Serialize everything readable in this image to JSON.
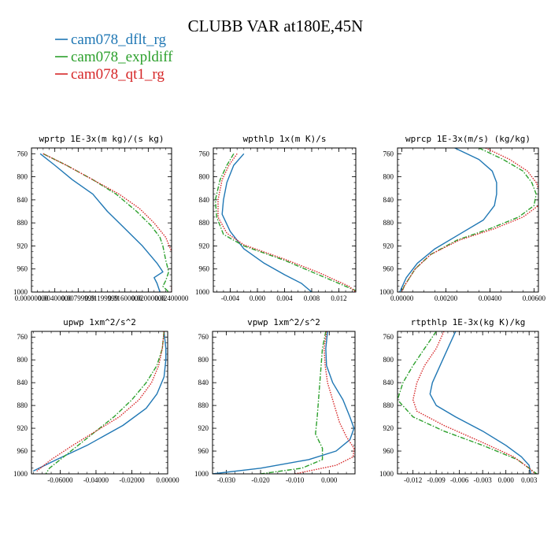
{
  "title": "CLUBB VAR at180E,45N",
  "legend": [
    {
      "name": "cam078_dflt_rg",
      "color": "#1f77b4",
      "dash": "solid"
    },
    {
      "name": "cam078_expldiff",
      "color": "#2ca02c",
      "dash": "dashdot"
    },
    {
      "name": "cam078_qt1_rg",
      "color": "#d62728",
      "dash": "dotted"
    }
  ],
  "chart_data": [
    {
      "type": "line",
      "title": "wprtp  1E-3x(m kg)/(s kg)",
      "xlim": [
        0,
        0.024
      ],
      "ylim": [
        1000,
        750
      ],
      "xticks": [
        0,
        0.004,
        0.008,
        0.012,
        0.016,
        0.02,
        0.024
      ],
      "xtick_labels": [
        "0.00000000",
        "0.00400000",
        "0.00799999",
        "0.01199999",
        "0.01600000",
        "0.02000000",
        "0.02400000"
      ],
      "yticks": [
        760,
        800,
        840,
        880,
        920,
        960,
        1000
      ],
      "series": [
        {
          "name": "cam078_dflt_rg",
          "points": [
            [
              0.0015,
              760
            ],
            [
              0.004,
              780
            ],
            [
              0.007,
              805
            ],
            [
              0.0105,
              830
            ],
            [
              0.013,
              860
            ],
            [
              0.0155,
              885
            ],
            [
              0.019,
              920
            ],
            [
              0.0215,
              950
            ],
            [
              0.0225,
              965
            ],
            [
              0.021,
              975
            ],
            [
              0.0215,
              985
            ],
            [
              0.022,
              1000
            ]
          ]
        },
        {
          "name": "cam078_expldiff",
          "points": [
            [
              0.002,
              760
            ],
            [
              0.006,
              780
            ],
            [
              0.0105,
              805
            ],
            [
              0.0145,
              830
            ],
            [
              0.018,
              860
            ],
            [
              0.0205,
              885
            ],
            [
              0.022,
              905
            ],
            [
              0.0225,
              920
            ],
            [
              0.023,
              945
            ],
            [
              0.0235,
              965
            ],
            [
              0.023,
              980
            ],
            [
              0.0225,
              990
            ],
            [
              0.0235,
              1000
            ]
          ]
        },
        {
          "name": "cam078_qt1_rg",
          "points": [
            [
              0.002,
              760
            ],
            [
              0.006,
              780
            ],
            [
              0.0105,
              805
            ],
            [
              0.015,
              830
            ],
            [
              0.0185,
              855
            ],
            [
              0.021,
              880
            ],
            [
              0.023,
              905
            ],
            [
              0.024,
              930
            ],
            [
              0.0245,
              955
            ],
            [
              0.0245,
              975
            ],
            [
              0.024,
              990
            ],
            [
              0.024,
              1000
            ]
          ]
        }
      ]
    },
    {
      "type": "line",
      "title": "wpthlp  1x(m K)/s",
      "xlim": [
        -0.0065,
        0.0145
      ],
      "ylim": [
        1000,
        750
      ],
      "xticks": [
        -0.004,
        0,
        0.004,
        0.008,
        0.012
      ],
      "xtick_labels": [
        "-0.004",
        "0.000",
        "0.004",
        "0.008",
        "0.012"
      ],
      "yticks": [
        760,
        800,
        840,
        880,
        920,
        960,
        1000
      ],
      "series": [
        {
          "name": "cam078_dflt_rg",
          "points": [
            [
              -0.002,
              760
            ],
            [
              -0.0035,
              780
            ],
            [
              -0.0045,
              810
            ],
            [
              -0.005,
              840
            ],
            [
              -0.0052,
              865
            ],
            [
              -0.004,
              895
            ],
            [
              -0.002,
              925
            ],
            [
              0.001,
              950
            ],
            [
              0.004,
              970
            ],
            [
              0.0065,
              985
            ],
            [
              0.008,
              1000
            ]
          ]
        },
        {
          "name": "cam078_expldiff",
          "points": [
            [
              -0.0035,
              760
            ],
            [
              -0.0045,
              780
            ],
            [
              -0.0055,
              805
            ],
            [
              -0.0062,
              840
            ],
            [
              -0.006,
              870
            ],
            [
              -0.005,
              900
            ],
            [
              -0.002,
              920
            ],
            [
              0.004,
              945
            ],
            [
              0.009,
              970
            ],
            [
              0.013,
              990
            ],
            [
              0.015,
              1000
            ]
          ]
        },
        {
          "name": "cam078_qt1_rg",
          "points": [
            [
              -0.003,
              760
            ],
            [
              -0.0042,
              780
            ],
            [
              -0.0052,
              805
            ],
            [
              -0.0058,
              840
            ],
            [
              -0.0058,
              870
            ],
            [
              -0.0045,
              898
            ],
            [
              -0.002,
              918
            ],
            [
              0.004,
              943
            ],
            [
              0.009,
              966
            ],
            [
              0.0135,
              990
            ],
            [
              0.0145,
              1000
            ]
          ]
        }
      ]
    },
    {
      "type": "line",
      "title": "wprcp  1E-3x(m/s) (kg/kg)",
      "xlim": [
        -0.0002,
        0.0062
      ],
      "ylim": [
        1000,
        750
      ],
      "xticks": [
        0,
        0.002,
        0.004,
        0.006
      ],
      "xtick_labels": [
        "0.00000",
        "0.00200",
        "0.00400",
        "0.00600"
      ],
      "yticks": [
        760,
        800,
        840,
        880,
        920,
        960,
        1000
      ],
      "series": [
        {
          "name": "cam078_dflt_rg",
          "points": [
            [
              0.0024,
              750
            ],
            [
              0.0035,
              770
            ],
            [
              0.0041,
              790
            ],
            [
              0.0043,
              810
            ],
            [
              0.0043,
              830
            ],
            [
              0.0042,
              850
            ],
            [
              0.0037,
              875
            ],
            [
              0.0026,
              900
            ],
            [
              0.0015,
              925
            ],
            [
              0.0007,
              950
            ],
            [
              0.0002,
              975
            ],
            [
              -0.0001,
              1000
            ]
          ]
        },
        {
          "name": "cam078_expldiff",
          "points": [
            [
              0.0035,
              750
            ],
            [
              0.0046,
              770
            ],
            [
              0.0055,
              790
            ],
            [
              0.0059,
              810
            ],
            [
              0.0061,
              830
            ],
            [
              0.006,
              850
            ],
            [
              0.0053,
              870
            ],
            [
              0.004,
              890
            ],
            [
              0.0025,
              910
            ],
            [
              0.0013,
              935
            ],
            [
              0.0006,
              960
            ],
            [
              0.0001,
              990
            ],
            [
              0,
              1000
            ]
          ]
        },
        {
          "name": "cam078_qt1_rg",
          "points": [
            [
              0.0038,
              750
            ],
            [
              0.0049,
              770
            ],
            [
              0.0057,
              790
            ],
            [
              0.0061,
              810
            ],
            [
              0.0063,
              830
            ],
            [
              0.0062,
              850
            ],
            [
              0.0055,
              870
            ],
            [
              0.0042,
              890
            ],
            [
              0.0026,
              910
            ],
            [
              0.0013,
              935
            ],
            [
              0.0006,
              960
            ],
            [
              0.0001,
              990
            ],
            [
              0,
              1000
            ]
          ]
        }
      ]
    },
    {
      "type": "line",
      "title": "upwp  1xm^2/s^2",
      "xlim": [
        -0.076,
        0
      ],
      "ylim": [
        1000,
        750
      ],
      "xticks": [
        -0.06,
        -0.04,
        -0.02,
        0
      ],
      "xtick_labels": [
        "-0.06000",
        "-0.04000",
        "-0.02000",
        "0.00000"
      ],
      "yticks": [
        760,
        800,
        840,
        880,
        920,
        960,
        1000
      ],
      "series": [
        {
          "name": "cam078_dflt_rg",
          "points": [
            [
              -0.002,
              750
            ],
            [
              -0.001,
              780
            ],
            [
              -0.001,
              800
            ],
            [
              -0.002,
              830
            ],
            [
              -0.006,
              860
            ],
            [
              -0.012,
              885
            ],
            [
              -0.025,
              915
            ],
            [
              -0.045,
              950
            ],
            [
              -0.062,
              975
            ],
            [
              -0.075,
              995
            ]
          ]
        },
        {
          "name": "cam078_expldiff",
          "points": [
            [
              -0.002,
              750
            ],
            [
              -0.003,
              780
            ],
            [
              -0.006,
              810
            ],
            [
              -0.012,
              840
            ],
            [
              -0.02,
              870
            ],
            [
              -0.03,
              900
            ],
            [
              -0.04,
              925
            ],
            [
              -0.05,
              950
            ],
            [
              -0.058,
              970
            ],
            [
              -0.066,
              990
            ],
            [
              -0.068,
              1000
            ]
          ]
        },
        {
          "name": "cam078_qt1_rg",
          "points": [
            [
              -0.002,
              750
            ],
            [
              -0.003,
              780
            ],
            [
              -0.005,
              810
            ],
            [
              -0.009,
              840
            ],
            [
              -0.016,
              870
            ],
            [
              -0.027,
              900
            ],
            [
              -0.04,
              925
            ],
            [
              -0.053,
              950
            ],
            [
              -0.065,
              975
            ],
            [
              -0.073,
              995
            ]
          ]
        }
      ]
    },
    {
      "type": "line",
      "title": "vpwp  1xm^2/s^2",
      "xlim": [
        -0.034,
        0.0075
      ],
      "ylim": [
        1000,
        750
      ],
      "xticks": [
        -0.03,
        -0.02,
        -0.01,
        0
      ],
      "xtick_labels": [
        "-0.030",
        "-0.020",
        "-0.010",
        "0.000"
      ],
      "yticks": [
        760,
        800,
        840,
        880,
        920,
        960,
        1000
      ],
      "series": [
        {
          "name": "cam078_dflt_rg",
          "points": [
            [
              -0.0005,
              750
            ],
            [
              -0.001,
              780
            ],
            [
              -0.0008,
              810
            ],
            [
              0.001,
              840
            ],
            [
              0.004,
              870
            ],
            [
              0.006,
              900
            ],
            [
              0.0072,
              920
            ],
            [
              0.006,
              940
            ],
            [
              0.002,
              960
            ],
            [
              -0.006,
              975
            ],
            [
              -0.02,
              990
            ],
            [
              -0.034,
              1000
            ]
          ]
        },
        {
          "name": "cam078_expldiff",
          "points": [
            [
              -0.001,
              750
            ],
            [
              -0.002,
              780
            ],
            [
              -0.0025,
              820
            ],
            [
              -0.003,
              860
            ],
            [
              -0.0035,
              900
            ],
            [
              -0.004,
              930
            ],
            [
              -0.002,
              955
            ],
            [
              -0.002,
              975
            ],
            [
              -0.008,
              990
            ],
            [
              -0.02,
              1000
            ]
          ]
        },
        {
          "name": "cam078_qt1_rg",
          "points": [
            [
              -0.0008,
              750
            ],
            [
              -0.0015,
              780
            ],
            [
              -0.0012,
              810
            ],
            [
              -0.0005,
              840
            ],
            [
              0.0015,
              880
            ],
            [
              0.003,
              910
            ],
            [
              0.005,
              935
            ],
            [
              0.0072,
              955
            ],
            [
              0.007,
              970
            ],
            [
              0.002,
              985
            ],
            [
              -0.01,
              1000
            ]
          ]
        }
      ]
    },
    {
      "type": "line",
      "title": "rtpthlp  1E-3x(kg K)/kg",
      "xlim": [
        -0.014,
        0.0042
      ],
      "ylim": [
        1000,
        750
      ],
      "xticks": [
        -0.012,
        -0.009,
        -0.006,
        -0.003,
        0,
        0.003
      ],
      "xtick_labels": [
        "-0.012",
        "-0.009",
        "-0.006",
        "-0.003",
        "0.000",
        "0.003"
      ],
      "yticks": [
        760,
        800,
        840,
        880,
        920,
        960,
        1000
      ],
      "series": [
        {
          "name": "cam078_dflt_rg",
          "points": [
            [
              -0.0065,
              750
            ],
            [
              -0.0075,
              780
            ],
            [
              -0.0085,
              810
            ],
            [
              -0.0095,
              840
            ],
            [
              -0.0098,
              860
            ],
            [
              -0.009,
              880
            ],
            [
              -0.0065,
              900
            ],
            [
              -0.003,
              925
            ],
            [
              0,
              950
            ],
            [
              0.002,
              970
            ],
            [
              0.003,
              985
            ],
            [
              0.0032,
              1000
            ]
          ]
        },
        {
          "name": "cam078_expldiff",
          "points": [
            [
              -0.009,
              750
            ],
            [
              -0.0105,
              780
            ],
            [
              -0.012,
              810
            ],
            [
              -0.0133,
              840
            ],
            [
              -0.014,
              870
            ],
            [
              -0.012,
              900
            ],
            [
              -0.008,
              925
            ],
            [
              -0.003,
              950
            ],
            [
              0.0015,
              975
            ],
            [
              0.003,
              990
            ],
            [
              0.004,
              1000
            ]
          ]
        },
        {
          "name": "cam078_qt1_rg",
          "points": [
            [
              -0.008,
              750
            ],
            [
              -0.009,
              780
            ],
            [
              -0.0105,
              810
            ],
            [
              -0.0115,
              840
            ],
            [
              -0.012,
              870
            ],
            [
              -0.0115,
              890
            ],
            [
              -0.008,
              915
            ],
            [
              -0.003,
              945
            ],
            [
              0.001,
              970
            ],
            [
              0.003,
              990
            ],
            [
              0.0038,
              1000
            ]
          ]
        }
      ]
    }
  ]
}
